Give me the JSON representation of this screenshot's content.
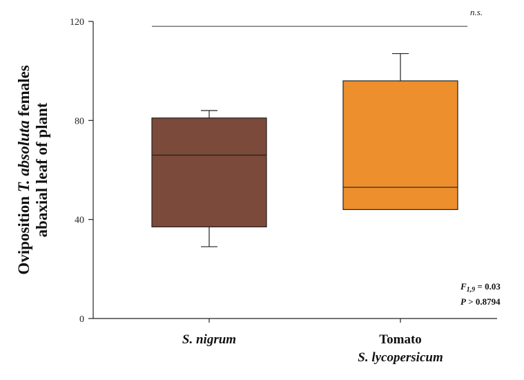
{
  "chart_data": {
    "type": "box",
    "ylabel_parts": [
      {
        "text": "Oviposition ",
        "italic": false
      },
      {
        "text": "T. absoluta",
        "italic": true
      },
      {
        "text": " females",
        "italic": false
      }
    ],
    "ylabel_line2": "abaxial leaf of plant",
    "ylim": [
      0,
      120
    ],
    "yticks": [
      0,
      40,
      80,
      120
    ],
    "categories": [
      {
        "lines": [
          {
            "text": "S. nigrum",
            "italic": true
          }
        ]
      },
      {
        "lines": [
          {
            "text": "Tomato",
            "italic": false
          },
          {
            "text": "S. lycopersicum",
            "italic": true
          }
        ]
      }
    ],
    "boxes": [
      {
        "min": 29,
        "q1": 37,
        "median": 66,
        "q3": 81,
        "max": 84,
        "color": "#7b4a3a"
      },
      {
        "min": 44,
        "q1": 44,
        "median": 53,
        "q3": 96,
        "max": 107,
        "color": "#ec8f2c"
      }
    ],
    "significance": {
      "label": "n.s.",
      "y": 118
    },
    "stats": {
      "f_letter": "F",
      "f_sub": "1,9",
      "f_rest": " = 0.03",
      "p_letter": "P",
      "p_rest": " > 0.8794"
    },
    "grid": false,
    "legend": "none"
  }
}
